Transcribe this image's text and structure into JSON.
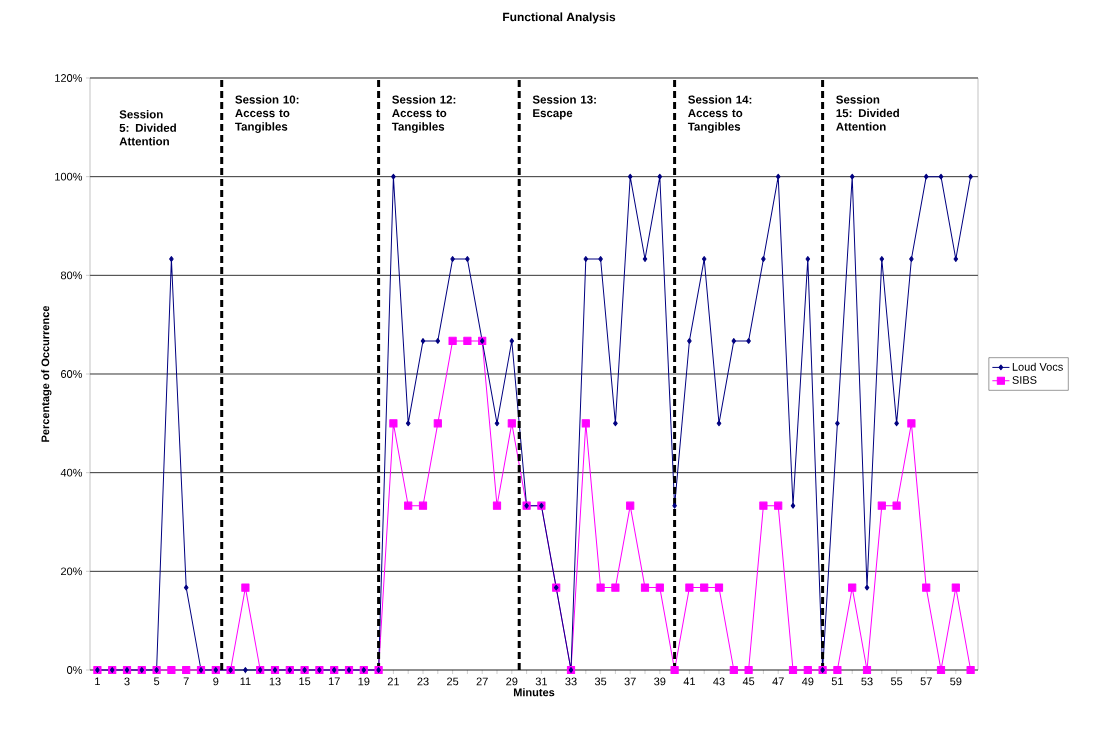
{
  "chart_data": {
    "type": "line",
    "title": "Functional Analysis",
    "xlabel": "Minutes",
    "ylabel": "Percentage of Occurrence",
    "x": [
      1,
      2,
      3,
      4,
      5,
      6,
      7,
      8,
      9,
      10,
      11,
      12,
      13,
      14,
      15,
      16,
      17,
      18,
      19,
      20,
      21,
      22,
      23,
      24,
      25,
      26,
      27,
      28,
      29,
      30,
      31,
      32,
      33,
      34,
      35,
      36,
      37,
      38,
      39,
      40,
      41,
      42,
      43,
      44,
      45,
      46,
      47,
      48,
      49,
      50,
      51,
      52,
      53,
      54,
      55,
      56,
      57,
      58,
      59,
      60
    ],
    "xlim": [
      0.5,
      60.5
    ],
    "xticks": [
      1,
      {
        "value": 2,
        "label": null
      },
      3,
      {
        "value": 4,
        "label": null
      },
      5,
      {
        "value": 6,
        "label": null
      },
      7,
      {
        "value": 8,
        "label": null
      },
      9,
      {
        "value": 10,
        "label": null
      },
      11,
      {
        "value": 12,
        "label": null
      },
      13,
      {
        "value": 14,
        "label": null
      },
      15,
      {
        "value": 16,
        "label": null
      },
      17,
      {
        "value": 18,
        "label": null
      },
      19,
      {
        "value": 20,
        "label": null
      },
      21,
      {
        "value": 22,
        "label": null
      },
      23,
      {
        "value": 24,
        "label": null
      },
      25,
      {
        "value": 26,
        "label": null
      },
      27,
      {
        "value": 28,
        "label": null
      },
      29,
      {
        "value": 30,
        "label": null
      },
      31,
      {
        "value": 32,
        "label": null
      },
      33,
      {
        "value": 34,
        "label": null
      },
      35,
      {
        "value": 36,
        "label": null
      },
      37,
      {
        "value": 38,
        "label": null
      },
      39,
      {
        "value": 40,
        "label": null
      },
      41,
      {
        "value": 42,
        "label": null
      },
      43,
      {
        "value": 44,
        "label": null
      },
      45,
      {
        "value": 46,
        "label": null
      },
      47,
      {
        "value": 48,
        "label": null
      },
      49,
      {
        "value": 50,
        "label": null
      },
      51,
      {
        "value": 52,
        "label": null
      },
      53,
      {
        "value": 54,
        "label": null
      },
      55,
      {
        "value": 56,
        "label": null
      },
      57,
      {
        "value": 58,
        "label": null
      },
      59,
      {
        "value": 60,
        "label": null
      }
    ],
    "ylim": [
      0,
      120
    ],
    "yticks": [
      {
        "value": 0,
        "label": "0%"
      },
      {
        "value": 20,
        "label": "20%"
      },
      {
        "value": 40,
        "label": "40%"
      },
      {
        "value": 60,
        "label": "60%"
      },
      {
        "value": 80,
        "label": "80%"
      },
      {
        "value": 100,
        "label": "100%"
      },
      {
        "value": 120,
        "label": "120%"
      }
    ],
    "grid": "y",
    "legend": "right",
    "series": [
      {
        "name": "Loud Vocs",
        "color": "#000080",
        "marker": "diamond",
        "values": [
          0,
          0,
          0,
          0,
          0,
          83.3,
          16.7,
          0,
          0,
          0,
          0,
          0,
          0,
          0,
          0,
          0,
          0,
          0,
          0,
          0,
          100,
          50,
          66.7,
          66.7,
          83.3,
          83.3,
          66.7,
          50,
          66.7,
          33.3,
          33.3,
          16.7,
          0,
          83.3,
          83.3,
          50,
          100,
          83.3,
          100,
          33.3,
          66.7,
          83.3,
          50,
          66.7,
          66.7,
          83.3,
          100,
          33.3,
          83.3,
          0,
          50,
          100,
          16.7,
          83.3,
          50,
          83.3,
          100,
          100,
          83.3,
          100
        ]
      },
      {
        "name": "SIBS",
        "color": "#ff00ff",
        "marker": "square",
        "values": [
          0,
          0,
          0,
          0,
          0,
          0,
          0,
          0,
          0,
          0,
          16.7,
          0,
          0,
          0,
          0,
          0,
          0,
          0,
          0,
          0,
          50,
          33.3,
          33.3,
          50,
          66.7,
          66.7,
          66.7,
          33.3,
          50,
          33.3,
          33.3,
          16.7,
          0,
          50,
          16.7,
          16.7,
          33.3,
          16.7,
          16.7,
          0,
          16.7,
          16.7,
          16.7,
          0,
          0,
          33.3,
          33.3,
          0,
          0,
          0,
          0,
          16.7,
          0,
          33.3,
          33.3,
          50,
          16.7,
          0,
          16.7,
          0
        ]
      }
    ],
    "ref_lines": [
      {
        "axis": "x",
        "value": 9.4,
        "label": "Session 10: Access to Tangibles",
        "color": "#000000",
        "line_style": "dashed"
      },
      {
        "axis": "x",
        "value": 20,
        "label": "Session 12: Access to Tangibles",
        "color": "#000000",
        "line_style": "dashed"
      },
      {
        "axis": "x",
        "value": 29.5,
        "label": "Session 13: Escape",
        "color": "#000000",
        "line_style": "dashed"
      },
      {
        "axis": "x",
        "value": 40,
        "label": "Session 14: Access to Tangibles",
        "color": "#000000",
        "line_style": "dashed"
      },
      {
        "axis": "x",
        "value": 50,
        "label": "Session 15: Divided Attention",
        "color": "#000000",
        "line_style": "dashed"
      }
    ],
    "annotations": [
      "Session 5: Divided Attention"
    ]
  }
}
